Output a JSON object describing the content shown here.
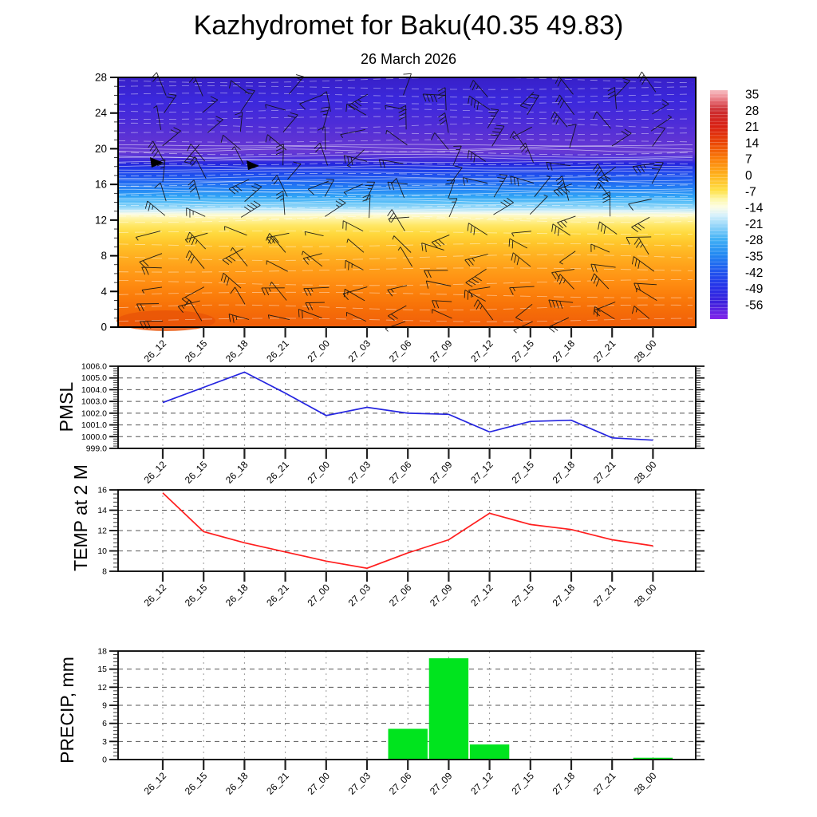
{
  "title": "Kazhydromet for Baku(40.35 49.83)",
  "subtitle": "26 March 2026",
  "time_labels": [
    "26_12",
    "26_15",
    "26_18",
    "26_21",
    "27_00",
    "27_03",
    "27_06",
    "27_09",
    "27_12",
    "27_15",
    "27_18",
    "27_21",
    "28_00"
  ],
  "chart_data": [
    {
      "type": "heatmap",
      "name": "wind-temperature-time-height-cross-section",
      "x_categories": [
        "26_12",
        "26_15",
        "26_18",
        "26_21",
        "27_00",
        "27_03",
        "27_06",
        "27_09",
        "27_12",
        "27_15",
        "27_18",
        "27_21",
        "28_00"
      ],
      "ylim": [
        0,
        28
      ],
      "yticks": [
        "0",
        "4",
        "8",
        "12",
        "16",
        "20",
        "24",
        "28"
      ],
      "legend_position": "right-colorbar",
      "grid": false,
      "overlays": [
        "wind-barbs",
        "white-contour-lines"
      ],
      "estimated_profile_h_vs_temp": [
        {
          "h": 0,
          "t": 10
        },
        {
          "h": 4,
          "t": 7
        },
        {
          "h": 8,
          "t": 3
        },
        {
          "h": 10,
          "t": 0
        },
        {
          "h": 12,
          "t": -9
        },
        {
          "h": 13,
          "t": -16
        },
        {
          "h": 14,
          "t": -22
        },
        {
          "h": 16,
          "t": -30
        },
        {
          "h": 17,
          "t": -38
        },
        {
          "h": 18,
          "t": -48
        },
        {
          "h": 19,
          "t": -52
        },
        {
          "h": 21,
          "t": -56
        },
        {
          "h": 24,
          "t": -58
        },
        {
          "h": 28,
          "t": -60
        }
      ],
      "fill_gradient": [
        {
          "h": 28,
          "color": "#3820c8"
        },
        {
          "h": 25.5,
          "color": "#3b28dc"
        },
        {
          "h": 23,
          "color": "#4c2cd8"
        },
        {
          "h": 21,
          "color": "#5e33d4"
        },
        {
          "h": 19.6,
          "color": "#6639d4"
        },
        {
          "h": 18.9,
          "color": "#4b30da"
        },
        {
          "h": 18.3,
          "color": "#2527de"
        },
        {
          "h": 17.6,
          "color": "#2040ea"
        },
        {
          "h": 16.6,
          "color": "#1e5cf0"
        },
        {
          "h": 15.6,
          "color": "#2380f4"
        },
        {
          "h": 14.6,
          "color": "#31a5f6"
        },
        {
          "h": 13.9,
          "color": "#64c4f8"
        },
        {
          "h": 13.3,
          "color": "#a4def9"
        },
        {
          "h": 12.9,
          "color": "#e2f4f3"
        },
        {
          "h": 12.6,
          "color": "#fdfbd0"
        },
        {
          "h": 12.1,
          "color": "#fff3a0"
        },
        {
          "h": 11.4,
          "color": "#ffe765"
        },
        {
          "h": 10.5,
          "color": "#ffd93e"
        },
        {
          "h": 9.5,
          "color": "#ffc72c"
        },
        {
          "h": 8.2,
          "color": "#ffb322"
        },
        {
          "h": 6.8,
          "color": "#ffa11a"
        },
        {
          "h": 5.2,
          "color": "#ff9013"
        },
        {
          "h": 3.6,
          "color": "#fb7e0b"
        },
        {
          "h": 2,
          "color": "#f66e08"
        },
        {
          "h": 0,
          "color": "#f05e0a"
        }
      ],
      "colorbar": {
        "labels": [
          "35",
          "28",
          "21",
          "14",
          "7",
          "0",
          "-7",
          "-14",
          "-21",
          "-28",
          "-35",
          "-42",
          "-49",
          "-56"
        ],
        "gradient": [
          {
            "pos": 0.0,
            "color": "#f6bcc0"
          },
          {
            "pos": 0.03,
            "color": "#ee8e96"
          },
          {
            "pos": 0.06,
            "color": "#dd555c"
          },
          {
            "pos": 0.09,
            "color": "#cc2d30"
          },
          {
            "pos": 0.16,
            "color": "#d92012"
          },
          {
            "pos": 0.23,
            "color": "#ea4606"
          },
          {
            "pos": 0.3,
            "color": "#fb7e08"
          },
          {
            "pos": 0.37,
            "color": "#ffb21c"
          },
          {
            "pos": 0.44,
            "color": "#ffe248"
          },
          {
            "pos": 0.48,
            "color": "#fdf8b0"
          },
          {
            "pos": 0.51,
            "color": "#fdfde4"
          },
          {
            "pos": 0.545,
            "color": "#d8f1fb"
          },
          {
            "pos": 0.58,
            "color": "#a5ddfa"
          },
          {
            "pos": 0.65,
            "color": "#42b1f5"
          },
          {
            "pos": 0.72,
            "color": "#2187f2"
          },
          {
            "pos": 0.79,
            "color": "#2056ee"
          },
          {
            "pos": 0.86,
            "color": "#2430e8"
          },
          {
            "pos": 0.93,
            "color": "#3e20dc"
          },
          {
            "pos": 1.0,
            "color": "#8426ea"
          }
        ]
      }
    },
    {
      "type": "line",
      "name": "pmsl-chart",
      "label": "PMSL",
      "color": "#2424e0",
      "ylim": [
        999,
        1006
      ],
      "yticks": [
        "1006.0",
        "1005.0",
        "1004.0",
        "1003.0",
        "1002.0",
        "1001.0",
        "1000.0",
        "999.0"
      ],
      "grid": true,
      "x": [
        "26_12",
        "26_15",
        "26_18",
        "26_21",
        "27_00",
        "27_03",
        "27_06",
        "27_09",
        "27_12",
        "27_15",
        "27_18",
        "27_21",
        "28_00"
      ],
      "values": [
        1002.9,
        1004.2,
        1005.5,
        1003.7,
        1001.8,
        1002.5,
        1002.0,
        1001.9,
        1000.4,
        1001.3,
        1001.4,
        999.9,
        999.7
      ]
    },
    {
      "type": "line",
      "name": "temp-2m-chart",
      "label": "TEMP at 2 M",
      "color": "#ff1e1e",
      "ylim": [
        8,
        16
      ],
      "yticks": [
        "16",
        "14",
        "12",
        "10",
        "8"
      ],
      "grid": true,
      "x": [
        "26_12",
        "26_15",
        "26_18",
        "26_21",
        "27_00",
        "27_03",
        "27_06",
        "27_09",
        "27_12",
        "27_15",
        "27_18",
        "27_21",
        "28_00"
      ],
      "values": [
        15.7,
        11.9,
        10.8,
        9.9,
        9.0,
        8.3,
        9.8,
        11.1,
        13.7,
        12.6,
        12.1,
        11.1,
        10.5
      ]
    },
    {
      "type": "bar",
      "name": "precip-chart",
      "label": "PRECIP, mm",
      "color": "#00e41e",
      "ylim": [
        0,
        18
      ],
      "yticks": [
        "18",
        "15",
        "12",
        "9",
        "6",
        "3",
        "0"
      ],
      "grid": true,
      "x": [
        "26_12",
        "26_15",
        "26_18",
        "26_21",
        "27_00",
        "27_03",
        "27_06",
        "27_09",
        "27_12",
        "27_15",
        "27_18",
        "27_21",
        "28_00"
      ],
      "values": [
        0,
        0,
        0,
        0,
        0,
        0,
        5.1,
        16.8,
        2.5,
        0,
        0.1,
        0.1,
        0.3
      ]
    }
  ]
}
